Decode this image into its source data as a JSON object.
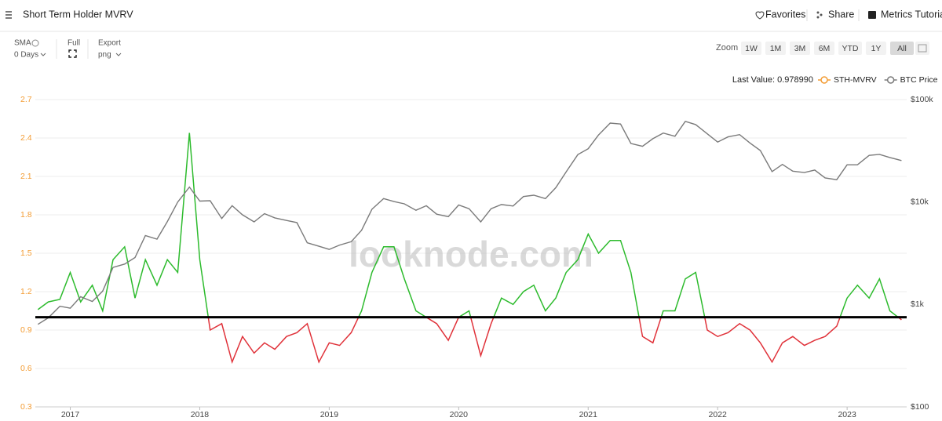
{
  "header": {
    "title": "Short Term Holder MVRV",
    "actions": [
      "Favorites",
      "Share",
      "Metrics Tutorial"
    ]
  },
  "toolbar": {
    "sma_label": "SMA",
    "sma_value": "0 Days",
    "full_label": "Full",
    "export_label": "Export",
    "export_value": "png",
    "zoom_label": "Zoom",
    "zoom_buttons": [
      "1W",
      "1M",
      "3M",
      "6M",
      "YTD",
      "1Y",
      "All"
    ],
    "zoom_active": "All"
  },
  "chart_data": {
    "type": "line",
    "last_value_label": "Last Value: 0.978990",
    "watermark": "looknode.com",
    "x": [
      2016.75,
      2016.83,
      2016.92,
      2017.0,
      2017.08,
      2017.17,
      2017.25,
      2017.33,
      2017.42,
      2017.5,
      2017.58,
      2017.67,
      2017.75,
      2017.83,
      2017.92,
      2018.0,
      2018.08,
      2018.17,
      2018.25,
      2018.33,
      2018.42,
      2018.5,
      2018.58,
      2018.67,
      2018.75,
      2018.83,
      2018.92,
      2019.0,
      2019.08,
      2019.17,
      2019.25,
      2019.33,
      2019.42,
      2019.5,
      2019.58,
      2019.67,
      2019.75,
      2019.83,
      2019.92,
      2020.0,
      2020.08,
      2020.17,
      2020.25,
      2020.33,
      2020.42,
      2020.5,
      2020.58,
      2020.67,
      2020.75,
      2020.83,
      2020.92,
      2021.0,
      2021.08,
      2021.17,
      2021.25,
      2021.33,
      2021.42,
      2021.5,
      2021.58,
      2021.67,
      2021.75,
      2021.83,
      2021.92,
      2022.0,
      2022.08,
      2022.17,
      2022.25,
      2022.33,
      2022.42,
      2022.5,
      2022.58,
      2022.67,
      2022.75,
      2022.83,
      2022.92,
      2023.0,
      2023.08,
      2023.17,
      2023.25,
      2023.33,
      2023.42
    ],
    "xlim": [
      2016.73,
      2023.46
    ],
    "xticks": [
      2017,
      2018,
      2019,
      2020,
      2021,
      2022,
      2023
    ],
    "ylim": [
      0.3,
      2.7
    ],
    "yticks": [
      0.3,
      0.6,
      0.9,
      1.2,
      1.5,
      1.8,
      2.1,
      2.4,
      2.7
    ],
    "y2lim": [
      100,
      100000
    ],
    "y2scale": "log",
    "y2ticks": [
      {
        "value": 100,
        "label": "$100"
      },
      {
        "value": 1000,
        "label": "$1k"
      },
      {
        "value": 10000,
        "label": "$10k"
      },
      {
        "value": 100000,
        "label": "$100k"
      }
    ],
    "grid": true,
    "reference_line": 1,
    "above_color": "#2dbb2d",
    "below_color": "#e0323a",
    "series": [
      {
        "name": "STH-MVRV",
        "color": "#f39c34",
        "values": [
          1.06,
          1.12,
          1.14,
          1.35,
          1.12,
          1.25,
          1.05,
          1.45,
          1.55,
          1.15,
          1.45,
          1.25,
          1.45,
          1.35,
          2.44,
          1.45,
          0.9,
          0.95,
          0.65,
          0.85,
          0.72,
          0.8,
          0.75,
          0.85,
          0.88,
          0.95,
          0.65,
          0.8,
          0.78,
          0.88,
          1.05,
          1.35,
          1.55,
          1.55,
          1.3,
          1.05,
          1.0,
          0.95,
          0.82,
          1.0,
          1.05,
          0.7,
          0.95,
          1.15,
          1.1,
          1.2,
          1.25,
          1.05,
          1.15,
          1.35,
          1.45,
          1.65,
          1.5,
          1.6,
          1.6,
          1.35,
          0.85,
          0.8,
          1.05,
          1.05,
          1.3,
          1.35,
          0.9,
          0.85,
          0.88,
          0.95,
          0.9,
          0.8,
          0.65,
          0.8,
          0.85,
          0.78,
          0.82,
          0.85,
          0.93,
          1.15,
          1.25,
          1.15,
          1.3,
          1.05,
          0.98
        ]
      },
      {
        "name": "BTC Price",
        "color": "#7a7a7a",
        "axis": "y2",
        "values": [
          640,
          740,
          960,
          920,
          1190,
          1070,
          1350,
          2300,
          2480,
          2870,
          4700,
          4340,
          6450,
          10000,
          14000,
          10200,
          10300,
          6900,
          9200,
          7500,
          6400,
          7700,
          7000,
          6600,
          6300,
          4000,
          3700,
          3450,
          3800,
          4100,
          5300,
          8500,
          10800,
          10100,
          9600,
          8300,
          9200,
          7600,
          7200,
          9350,
          8600,
          6400,
          8600,
          9450,
          9140,
          11300,
          11650,
          10800,
          13800,
          19700,
          29000,
          33100,
          45200,
          58900,
          57700,
          37300,
          35000,
          41500,
          47100,
          43800,
          61300,
          57000,
          46300,
          38500,
          43200,
          45500,
          37700,
          31800,
          19800,
          23300,
          20000,
          19400,
          20500,
          17200,
          16500,
          23100,
          23100,
          28500,
          29200,
          27200,
          25400
        ]
      }
    ]
  }
}
